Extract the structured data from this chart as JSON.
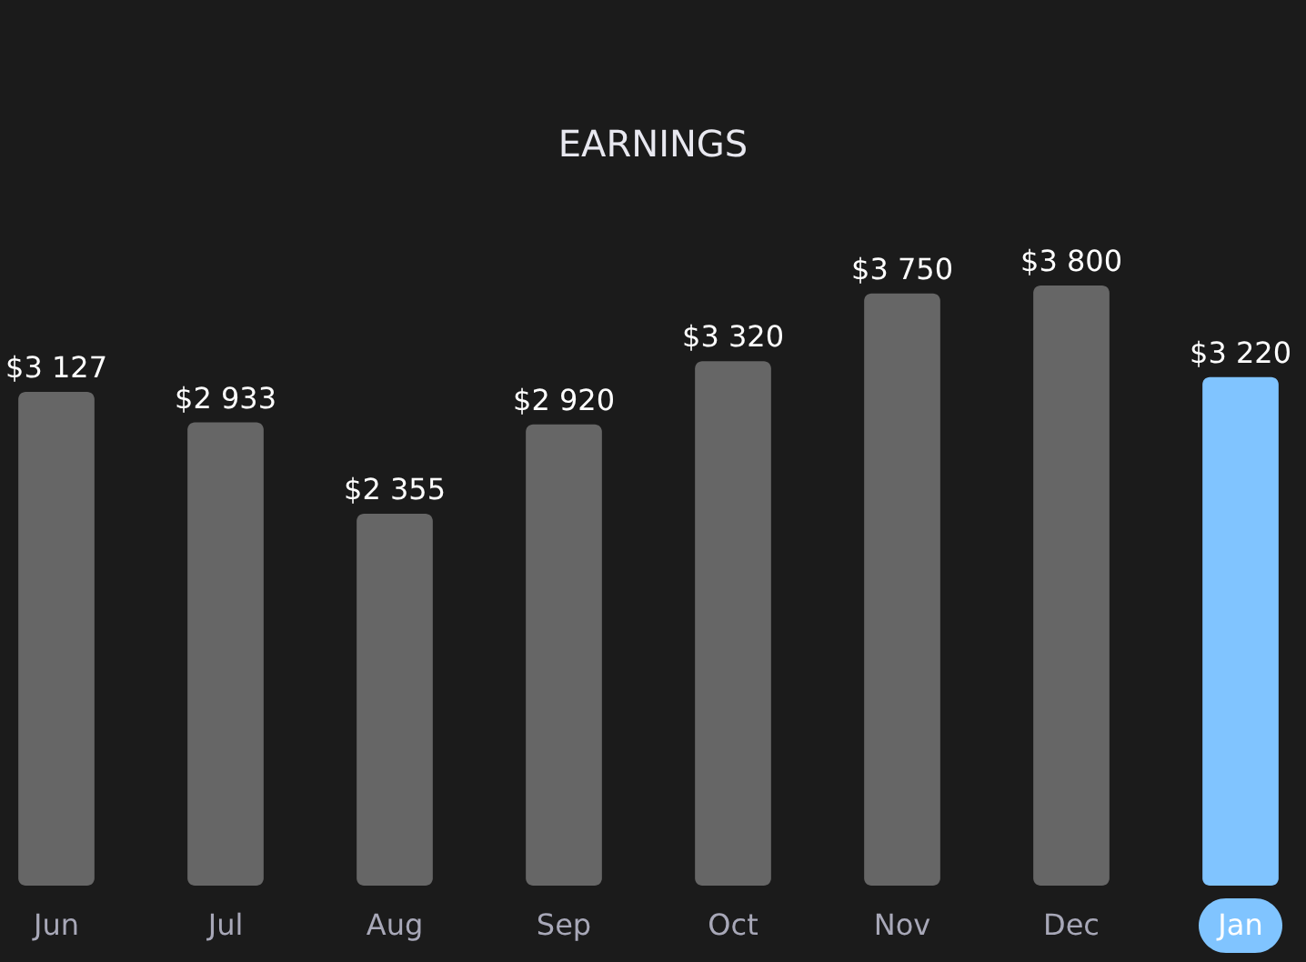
{
  "chart_data": {
    "type": "bar",
    "title": "EARNINGS",
    "categories": [
      "Jun",
      "Jul",
      "Aug",
      "Sep",
      "Oct",
      "Nov",
      "Dec",
      "Jan"
    ],
    "values": [
      3127,
      2933,
      2355,
      2920,
      3320,
      3750,
      3800,
      3220
    ],
    "value_labels": [
      "$3 127",
      "$2 933",
      "$2 355",
      "$2 920",
      "$3 320",
      "$3 750",
      "$3 800",
      "$3 220"
    ],
    "colors": [
      "#666666",
      "#666666",
      "#666666",
      "#666666",
      "#666666",
      "#666666",
      "#666666",
      "#80c4ff"
    ]
  }
}
